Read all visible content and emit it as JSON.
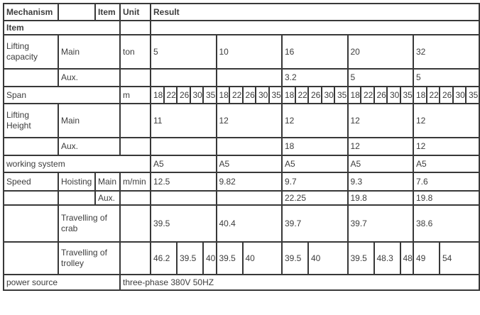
{
  "page": {
    "background_color": "#ffffff",
    "border_color": "#383838",
    "text_color": "#3d3d3d"
  },
  "table": {
    "description": "crane specification table",
    "rows": [
      {
        "cells": [
          {
            "t": "Mechanism",
            "cs": 1,
            "h": true
          },
          {
            "t": "",
            "cs": 1
          },
          {
            "t": "Item",
            "cs": 1,
            "h": true
          },
          {
            "t": "Unit",
            "cs": 1,
            "h": true
          },
          {
            "t": "Result",
            "cs": 25,
            "h": true
          }
        ]
      },
      {
        "cells": [
          {
            "t": "Item",
            "cs": 3,
            "h": true
          },
          {
            "t": "",
            "cs": 1
          },
          {
            "t": "",
            "cs": 25
          }
        ]
      },
      {
        "cells": [
          {
            "t": "Lifting capacity",
            "cs": 1
          },
          {
            "t": "Main",
            "cs": 2
          },
          {
            "t": "ton",
            "cs": 1
          },
          {
            "t": "5",
            "cs": 5
          },
          {
            "t": "10",
            "cs": 5
          },
          {
            "t": "16",
            "cs": 5
          },
          {
            "t": "20",
            "cs": 5
          },
          {
            "t": "32",
            "cs": 5
          }
        ]
      },
      {
        "cells": [
          {
            "t": "",
            "cs": 1
          },
          {
            "t": "Aux.",
            "cs": 2
          },
          {
            "t": "",
            "cs": 1
          },
          {
            "t": "",
            "cs": 5
          },
          {
            "t": "",
            "cs": 5
          },
          {
            "t": "3.2",
            "cs": 5
          },
          {
            "t": "5",
            "cs": 5
          },
          {
            "t": "5",
            "cs": 5
          }
        ]
      },
      {
        "cells": [
          {
            "t": "Span",
            "cs": 3
          },
          {
            "t": "m",
            "cs": 1
          },
          {
            "t": "18",
            "cs": 1
          },
          {
            "t": "22",
            "cs": 1
          },
          {
            "t": "26",
            "cs": 1
          },
          {
            "t": "30",
            "cs": 1
          },
          {
            "t": "35",
            "cs": 1
          },
          {
            "t": "18",
            "cs": 1
          },
          {
            "t": "22",
            "cs": 1
          },
          {
            "t": "26",
            "cs": 1
          },
          {
            "t": "30",
            "cs": 1
          },
          {
            "t": "35",
            "cs": 1
          },
          {
            "t": "18",
            "cs": 1
          },
          {
            "t": "22",
            "cs": 1
          },
          {
            "t": "26",
            "cs": 1
          },
          {
            "t": "30",
            "cs": 1
          },
          {
            "t": "35",
            "cs": 1
          },
          {
            "t": "18",
            "cs": 1
          },
          {
            "t": "22",
            "cs": 1
          },
          {
            "t": "26",
            "cs": 1
          },
          {
            "t": "30",
            "cs": 1
          },
          {
            "t": "35",
            "cs": 1
          },
          {
            "t": "18",
            "cs": 1
          },
          {
            "t": "22",
            "cs": 1
          },
          {
            "t": "26",
            "cs": 1
          },
          {
            "t": "30",
            "cs": 1
          },
          {
            "t": "35",
            "cs": 1
          }
        ]
      },
      {
        "cells": [
          {
            "t": "Lifting Height",
            "cs": 1
          },
          {
            "t": "Main",
            "cs": 2
          },
          {
            "t": "",
            "cs": 1
          },
          {
            "t": "11",
            "cs": 5
          },
          {
            "t": "12",
            "cs": 5
          },
          {
            "t": "12",
            "cs": 5
          },
          {
            "t": "12",
            "cs": 5
          },
          {
            "t": "12",
            "cs": 5
          }
        ]
      },
      {
        "cells": [
          {
            "t": "",
            "cs": 1
          },
          {
            "t": "Aux.",
            "cs": 2
          },
          {
            "t": "",
            "cs": 1
          },
          {
            "t": "",
            "cs": 5
          },
          {
            "t": "",
            "cs": 5
          },
          {
            "t": "18",
            "cs": 5
          },
          {
            "t": "12",
            "cs": 5
          },
          {
            "t": "12",
            "cs": 5
          }
        ]
      },
      {
        "cells": [
          {
            "t": "working system",
            "cs": 4
          },
          {
            "t": "A5",
            "cs": 5
          },
          {
            "t": "A5",
            "cs": 5
          },
          {
            "t": "A5",
            "cs": 5
          },
          {
            "t": "A5",
            "cs": 5
          },
          {
            "t": "A5",
            "cs": 5
          }
        ]
      },
      {
        "cells": [
          {
            "t": "Speed",
            "cs": 1
          },
          {
            "t": "Hoisting",
            "cs": 1
          },
          {
            "t": "Main",
            "cs": 1
          },
          {
            "t": "m/min",
            "cs": 1
          },
          {
            "t": "12.5",
            "cs": 5
          },
          {
            "t": "9.82",
            "cs": 5
          },
          {
            "t": "9.7",
            "cs": 5
          },
          {
            "t": "9.3",
            "cs": 5
          },
          {
            "t": "7.6",
            "cs": 5
          }
        ]
      },
      {
        "cells": [
          {
            "t": "",
            "cs": 1
          },
          {
            "t": "",
            "cs": 1
          },
          {
            "t": "Aux.",
            "cs": 1
          },
          {
            "t": "",
            "cs": 1
          },
          {
            "t": "",
            "cs": 5
          },
          {
            "t": "",
            "cs": 5
          },
          {
            "t": "22.25",
            "cs": 5
          },
          {
            "t": "19.8",
            "cs": 5
          },
          {
            "t": "19.8",
            "cs": 5
          }
        ]
      },
      {
        "cells": [
          {
            "t": "",
            "cs": 1
          },
          {
            "t": "Travelling of crab",
            "cs": 2
          },
          {
            "t": "",
            "cs": 1
          },
          {
            "t": "39.5",
            "cs": 5
          },
          {
            "t": "40.4",
            "cs": 5
          },
          {
            "t": "39.7",
            "cs": 5
          },
          {
            "t": "39.7",
            "cs": 5
          },
          {
            "t": "38.6",
            "cs": 5
          }
        ]
      },
      {
        "cells": [
          {
            "t": "",
            "cs": 1
          },
          {
            "t": "Travelling of trolley",
            "cs": 2
          },
          {
            "t": "",
            "cs": 1
          },
          {
            "t": "46.2",
            "cs": 2
          },
          {
            "t": "39.5",
            "cs": 2
          },
          {
            "t": "40",
            "cs": 1
          },
          {
            "t": "39.5",
            "cs": 2
          },
          {
            "t": "40",
            "cs": 3
          },
          {
            "t": "39.5",
            "cs": 2
          },
          {
            "t": "40",
            "cs": 3
          },
          {
            "t": "39.5",
            "cs": 2
          },
          {
            "t": "48.3",
            "cs": 2
          },
          {
            "t": "48",
            "cs": 1
          },
          {
            "t": "49",
            "cs": 2
          },
          {
            "t": "54",
            "cs": 3
          }
        ]
      },
      {
        "cells": [
          {
            "t": "power source",
            "cs": 3
          },
          {
            "t": "three-phase 380V 50HZ",
            "cs": 26
          }
        ]
      }
    ]
  }
}
